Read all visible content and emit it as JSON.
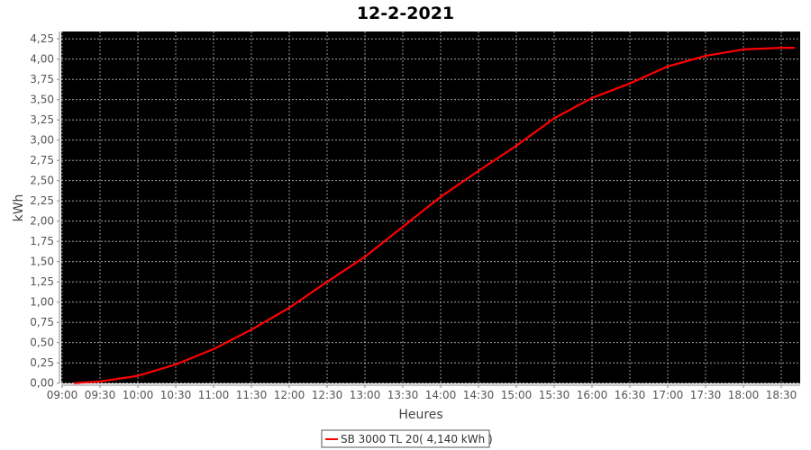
{
  "chart_data": {
    "type": "line",
    "title": "12-2-2021",
    "xlabel": "Heures",
    "ylabel": "kWh",
    "x_ticks": [
      "09:00",
      "09:30",
      "10:00",
      "10:30",
      "11:00",
      "11:30",
      "12:00",
      "12:30",
      "13:00",
      "13:30",
      "14:00",
      "14:30",
      "15:00",
      "15:30",
      "16:00",
      "16:30",
      "17:00",
      "17:30",
      "18:00",
      "18:30"
    ],
    "y_ticks": [
      "0,00",
      "0,25",
      "0,50",
      "0,75",
      "1,00",
      "1,25",
      "1,50",
      "1,75",
      "2,00",
      "2,25",
      "2,50",
      "2,75",
      "3,00",
      "3,25",
      "3,50",
      "3,75",
      "4,00",
      "4,25"
    ],
    "xlim": [
      "09:00",
      "18:45"
    ],
    "ylim": [
      0,
      4.35
    ],
    "grid": true,
    "background": "#000000",
    "legend_placement": "bottom",
    "series": [
      {
        "name": "SB 3000 TL 20( 4,140 kWh )",
        "color": "#ff0000",
        "x": [
          "09:10",
          "09:30",
          "10:00",
          "10:30",
          "11:00",
          "11:30",
          "12:00",
          "12:30",
          "13:00",
          "13:30",
          "14:00",
          "14:30",
          "15:00",
          "15:30",
          "16:00",
          "16:30",
          "17:00",
          "17:30",
          "18:00",
          "18:30",
          "18:40"
        ],
        "values": [
          0.0,
          0.02,
          0.09,
          0.23,
          0.42,
          0.66,
          0.93,
          1.25,
          1.56,
          1.93,
          2.3,
          2.62,
          2.93,
          3.27,
          3.52,
          3.7,
          3.91,
          4.04,
          4.12,
          4.14,
          4.14
        ]
      }
    ]
  }
}
